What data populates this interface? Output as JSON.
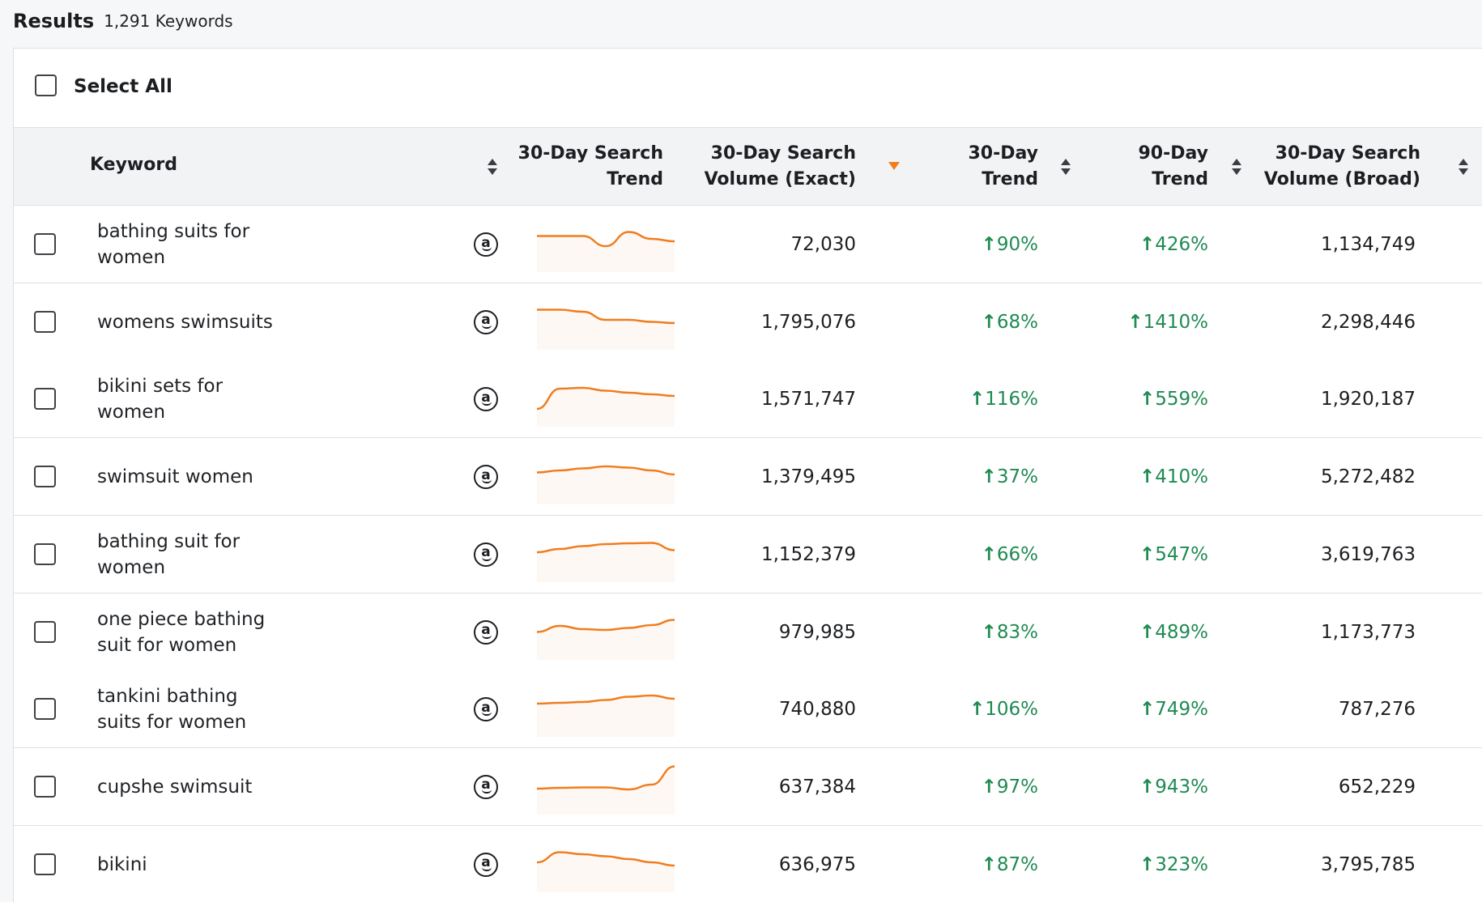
{
  "results": {
    "title": "Results",
    "count": "1,291 Keywords"
  },
  "select_all_label": "Select All",
  "columns": {
    "keyword": "Keyword",
    "search_trend": [
      "30-Day Search",
      "Trend"
    ],
    "volume_exact": [
      "30-Day Search",
      "Volume (Exact)"
    ],
    "trend_30": [
      "30-Day",
      "Trend"
    ],
    "trend_90": [
      "90-Day",
      "Trend"
    ],
    "volume_broad": [
      "30-Day Search",
      "Volume (Broad)"
    ]
  },
  "colors": {
    "trend_up": "#1f8a52",
    "sparkline": "#f07d1f",
    "sort_active": "#f07d1f"
  },
  "icons": {
    "marketplace": "amazon-icon",
    "trend_direction": "arrow-up-icon"
  },
  "rows": [
    {
      "keyword": [
        "bathing suits for",
        "women"
      ],
      "volume_exact": "72,030",
      "trend_30": "90%",
      "trend_90": "426%",
      "volume_broad": "1,134,749",
      "spark": [
        0.35,
        0.35,
        0.35,
        0.6,
        0.25,
        0.42,
        0.48
      ]
    },
    {
      "keyword": [
        "womens swimsuits"
      ],
      "volume_exact": "1,795,076",
      "trend_30": "68%",
      "trend_90": "1410%",
      "volume_broad": "2,298,446",
      "spark": [
        0.25,
        0.25,
        0.3,
        0.5,
        0.5,
        0.55,
        0.58
      ]
    },
    {
      "keyword": [
        "bikini sets for",
        "women"
      ],
      "volume_exact": "1,571,747",
      "trend_30": "116%",
      "trend_90": "559%",
      "volume_broad": "1,920,187",
      "spark": [
        0.8,
        0.3,
        0.28,
        0.35,
        0.4,
        0.44,
        0.48
      ]
    },
    {
      "keyword": [
        "swimsuit women"
      ],
      "volume_exact": "1,379,495",
      "trend_30": "37%",
      "trend_90": "410%",
      "volume_broad": "5,272,482",
      "spark": [
        0.45,
        0.4,
        0.35,
        0.3,
        0.33,
        0.4,
        0.5
      ]
    },
    {
      "keyword": [
        "bathing suit for",
        "women"
      ],
      "volume_exact": "1,152,379",
      "trend_30": "66%",
      "trend_90": "547%",
      "volume_broad": "3,619,763",
      "spark": [
        0.5,
        0.42,
        0.35,
        0.3,
        0.28,
        0.27,
        0.45
      ]
    },
    {
      "keyword": [
        "one piece bathing",
        "suit for women"
      ],
      "volume_exact": "979,985",
      "trend_30": "83%",
      "trend_90": "489%",
      "volume_broad": "1,173,773",
      "spark": [
        0.55,
        0.4,
        0.48,
        0.5,
        0.45,
        0.38,
        0.25
      ]
    },
    {
      "keyword": [
        "tankini bathing",
        "suits for women"
      ],
      "volume_exact": "740,880",
      "trend_30": "106%",
      "trend_90": "749%",
      "volume_broad": "787,276",
      "spark": [
        0.42,
        0.4,
        0.38,
        0.33,
        0.25,
        0.22,
        0.3
      ]
    },
    {
      "keyword": [
        "cupshe swimsuit"
      ],
      "volume_exact": "637,384",
      "trend_30": "97%",
      "trend_90": "943%",
      "volume_broad": "652,229",
      "spark": [
        0.6,
        0.58,
        0.57,
        0.57,
        0.62,
        0.5,
        0.05
      ]
    },
    {
      "keyword": [
        "bikini"
      ],
      "volume_exact": "636,975",
      "trend_30": "87%",
      "trend_90": "323%",
      "volume_broad": "3,795,785",
      "spark": [
        0.5,
        0.25,
        0.3,
        0.35,
        0.42,
        0.5,
        0.58
      ]
    }
  ]
}
